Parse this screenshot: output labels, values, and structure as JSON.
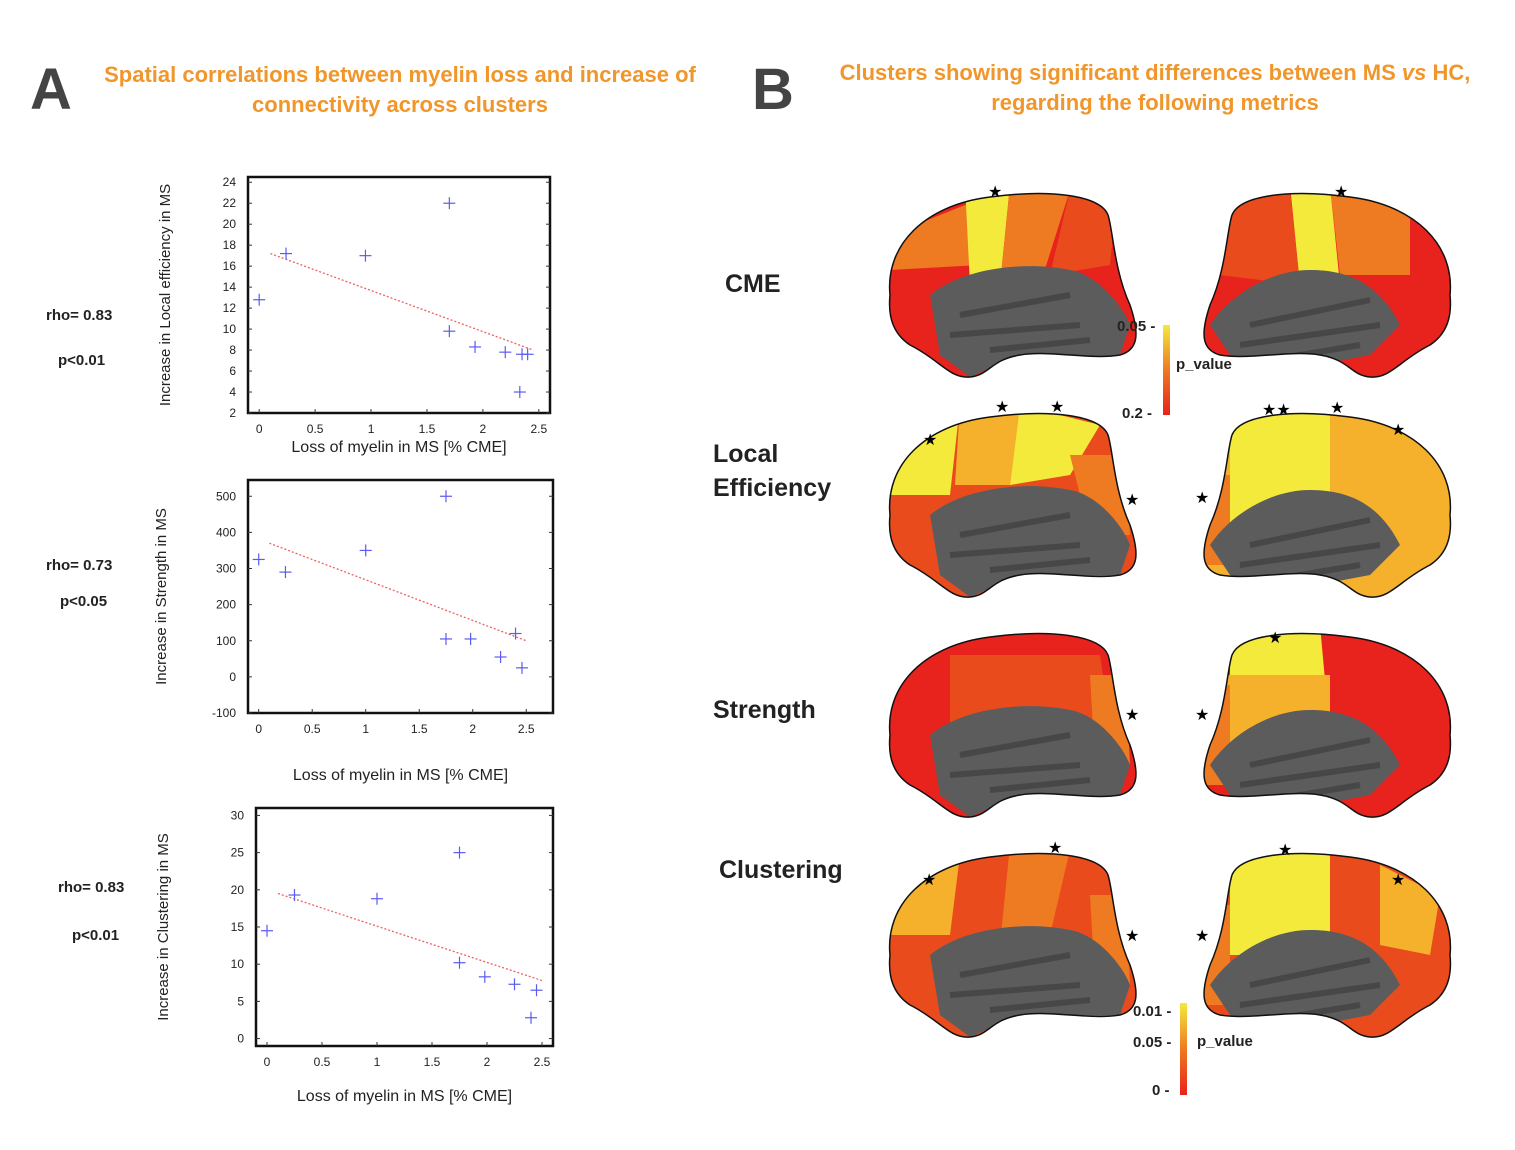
{
  "panelA": {
    "letter": "A",
    "title_line1": "Spatial correlations between myelin loss and increase of",
    "title_line2": "connectivity across clusters"
  },
  "panelB": {
    "letter": "B",
    "title_line1_a": "Clusters showing significant differences between MS ",
    "title_line1_vs": "vs",
    "title_line1_b": " HC,",
    "title_line2": "regarding the following metrics",
    "metrics": [
      "CME",
      "Local",
      "Efficiency",
      "Strength",
      "Clustering"
    ],
    "colorbar_top": {
      "label": "p_value",
      "ticks": [
        "0.05 -",
        "0.2 -"
      ]
    },
    "colorbar_bottom": {
      "label": "p_value",
      "ticks": [
        "0.01 -",
        "0.05 -",
        "0 -"
      ]
    },
    "colors": {
      "red": "#e8221d",
      "orange_red": "#ea4b1c",
      "orange": "#ee7a22",
      "light_orange": "#f5b02c",
      "yellow": "#f3ea3c",
      "gray": "#5c5c5c"
    }
  },
  "stats": [
    {
      "rho": "rho= 0.83",
      "p": "p<0.01"
    },
    {
      "rho": "rho= 0.73",
      "p": "p<0.05"
    },
    {
      "rho": "rho= 0.83",
      "p": "p<0.01"
    }
  ],
  "chart_data": [
    {
      "type": "scatter",
      "xlabel": "Loss of myelin in MS [% CME]",
      "ylabel": "Increase in Local efficiency in MS",
      "xlim": [
        -0.1,
        2.6
      ],
      "ylim": [
        2,
        24.5
      ],
      "xticks": [
        "0",
        "0.5",
        "1",
        "1.5",
        "2",
        "2.5"
      ],
      "xtick_values": [
        0,
        0.5,
        1,
        1.5,
        2,
        2.5
      ],
      "yticks": [
        "2",
        "4",
        "6",
        "8",
        "10",
        "12",
        "14",
        "16",
        "18",
        "20",
        "22",
        "24"
      ],
      "ytick_values": [
        2,
        4,
        6,
        8,
        10,
        12,
        14,
        16,
        18,
        20,
        22,
        24
      ],
      "x": [
        0.0,
        0.24,
        0.95,
        1.7,
        1.7,
        1.93,
        2.2,
        2.35,
        2.4,
        2.33
      ],
      "y": [
        12.8,
        17.2,
        17.0,
        22.0,
        9.8,
        8.3,
        7.8,
        7.6,
        7.6,
        4.0
      ],
      "fit": {
        "x": [
          0.1,
          2.45
        ],
        "y": [
          17.2,
          8.0
        ]
      }
    },
    {
      "type": "scatter",
      "xlabel": "Loss of myelin in MS [% CME]",
      "ylabel": "Increase in Strength in MS",
      "xlim": [
        -0.1,
        2.75
      ],
      "ylim": [
        -100,
        545
      ],
      "xticks": [
        "0",
        "0.5",
        "1",
        "1.5",
        "2",
        "2.5"
      ],
      "xtick_values": [
        0,
        0.5,
        1,
        1.5,
        2,
        2.5
      ],
      "yticks": [
        "-100",
        "0",
        "100",
        "200",
        "300",
        "400",
        "500"
      ],
      "ytick_values": [
        -100,
        0,
        100,
        200,
        300,
        400,
        500
      ],
      "x": [
        0.0,
        0.25,
        1.0,
        1.75,
        1.75,
        1.98,
        2.26,
        2.4,
        2.46
      ],
      "y": [
        325,
        290,
        350,
        500,
        105,
        105,
        55,
        120,
        25
      ],
      "fit": {
        "x": [
          0.1,
          2.5
        ],
        "y": [
          370,
          100
        ]
      }
    },
    {
      "type": "scatter",
      "xlabel": "Loss of myelin in MS [% CME]",
      "ylabel": "Increase in Clustering in MS",
      "xlim": [
        -0.1,
        2.6
      ],
      "ylim": [
        -1,
        31
      ],
      "xticks": [
        "0",
        "0.5",
        "1",
        "1.5",
        "2",
        "2.5"
      ],
      "xtick_values": [
        0,
        0.5,
        1,
        1.5,
        2,
        2.5
      ],
      "yticks": [
        "0",
        "5",
        "10",
        "15",
        "20",
        "25",
        "30"
      ],
      "ytick_values": [
        0,
        5,
        10,
        15,
        20,
        25,
        30
      ],
      "x": [
        0.0,
        0.25,
        1.0,
        1.75,
        1.75,
        1.98,
        2.25,
        2.4,
        2.45
      ],
      "y": [
        14.5,
        19.3,
        18.8,
        25.0,
        10.2,
        8.3,
        7.3,
        2.8,
        6.5
      ],
      "fit": {
        "x": [
          0.1,
          2.5
        ],
        "y": [
          19.5,
          7.8
        ]
      }
    }
  ]
}
